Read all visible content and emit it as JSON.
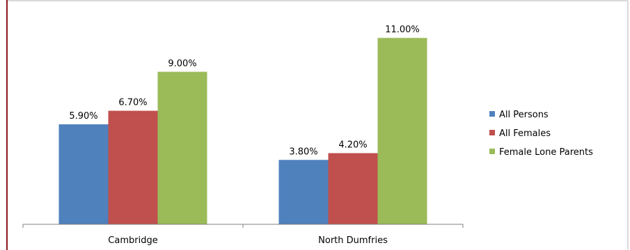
{
  "chart_data": {
    "type": "bar",
    "title": "",
    "xlabel": "",
    "ylabel": "",
    "ylim": [
      0,
      12
    ],
    "grid": false,
    "legend_position": "right",
    "categories": [
      "Cambridge",
      "North Dumfries"
    ],
    "series": [
      {
        "name": "All Persons",
        "color": "#4F81BD",
        "values": [
          5.9,
          3.8
        ],
        "labels": [
          "5.90%",
          "3.80%"
        ]
      },
      {
        "name": "All Females",
        "color": "#C0504D",
        "values": [
          6.7,
          4.2
        ],
        "labels": [
          "6.70%",
          "4.20%"
        ]
      },
      {
        "name": "Female Lone Parents",
        "color": "#9BBB59",
        "values": [
          9.0,
          11.0
        ],
        "labels": [
          "9.00%",
          "11.00%"
        ]
      }
    ]
  },
  "colors": {
    "frame_left_accent": "#8B1A1A",
    "frame_border": "#B3B3B3",
    "axis": "#7F7F7F"
  }
}
